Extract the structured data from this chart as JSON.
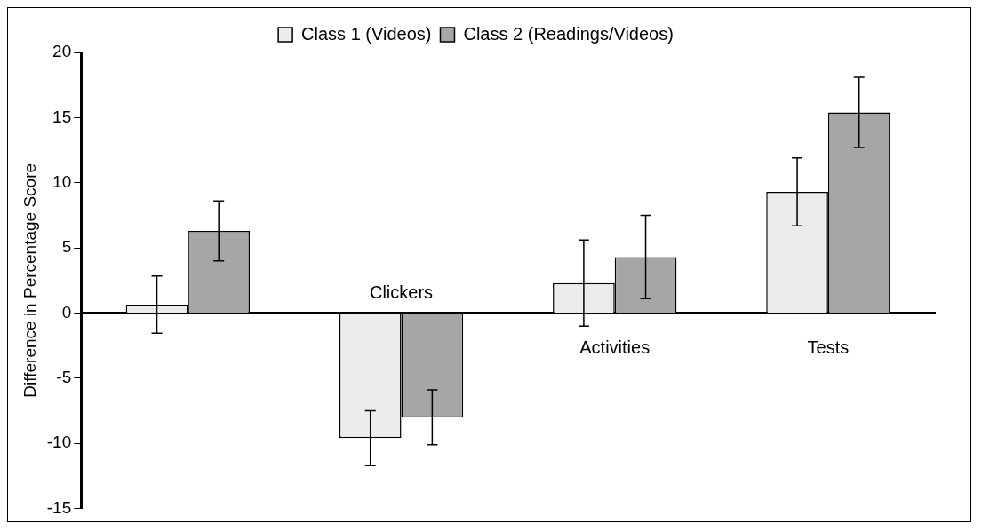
{
  "chart_data": {
    "type": "bar",
    "ylabel": "Difference in Percentage Score",
    "categories": [
      null,
      "Clickers",
      "Activities",
      "Tests"
    ],
    "series": [
      {
        "name": "Class 1 (Videos)",
        "color": "#ececec",
        "values": [
          0.65,
          -9.6,
          2.3,
          9.3
        ],
        "errors": [
          2.2,
          2.1,
          3.3,
          2.6
        ]
      },
      {
        "name": "Class 2 (Readings/Videos)",
        "color": "#a6a6a6",
        "values": [
          6.3,
          -8.0,
          4.3,
          15.4
        ],
        "errors": [
          2.3,
          2.1,
          3.2,
          2.7
        ]
      }
    ],
    "ylim": [
      -15,
      20
    ],
    "yticks": [
      -15,
      -10,
      -5,
      0,
      5,
      10,
      15,
      20
    ],
    "grid": false,
    "legend": "top"
  }
}
